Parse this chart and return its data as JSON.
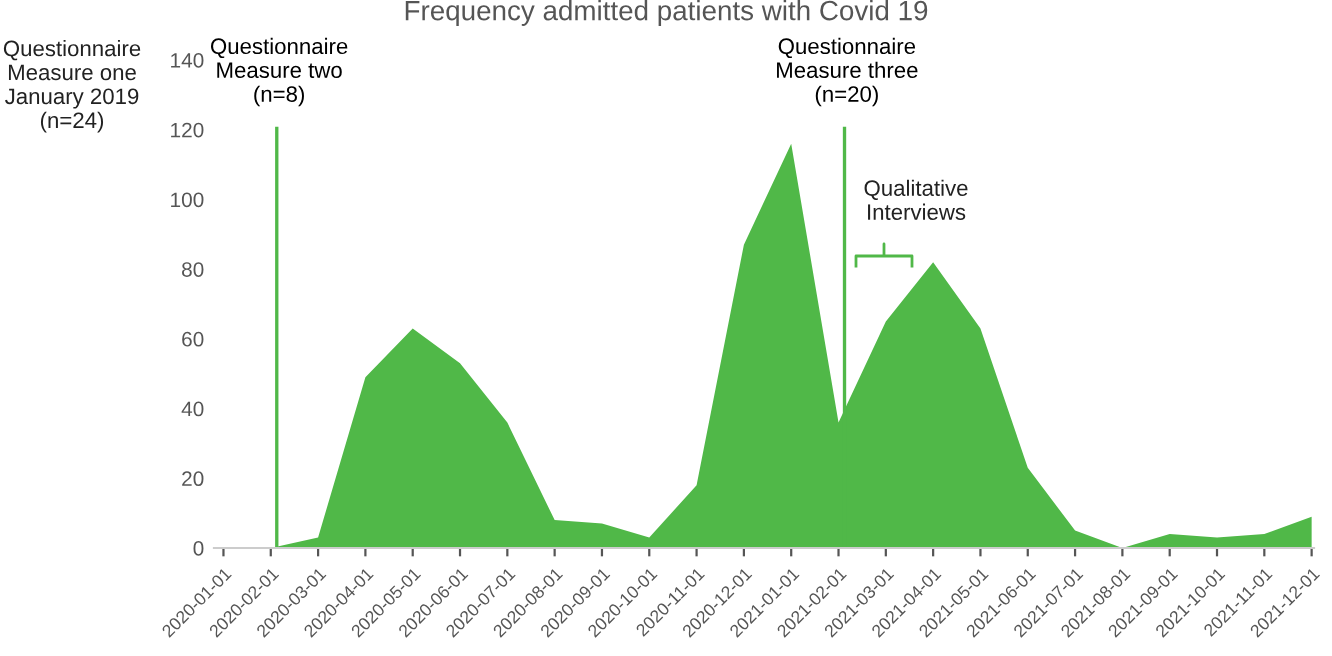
{
  "chart_data": {
    "type": "area",
    "title": "Frequency admitted patients with Covid 19",
    "categories": [
      "2020-01-01",
      "2020-02-01",
      "2020-03-01",
      "2020-04-01",
      "2020-05-01",
      "2020-06-01",
      "2020-07-01",
      "2020-08-01",
      "2020-09-01",
      "2020-10-01",
      "2020-11-01",
      "2020-12-01",
      "2021-01-01",
      "2021-02-01",
      "2021-03-01",
      "2021-04-01",
      "2021-05-01",
      "2021-06-01",
      "2021-07-01",
      "2021-08-01",
      "2021-09-01",
      "2021-10-01",
      "2021-11-01",
      "2021-12-01"
    ],
    "series": [
      {
        "color": "#50b848",
        "values": [
          null,
          0,
          3,
          49,
          63,
          53,
          36,
          8,
          7,
          3,
          18,
          87,
          116,
          36,
          65,
          82,
          63,
          23,
          5,
          0,
          4,
          3,
          4,
          9
        ]
      }
    ],
    "ylim": [
      0,
      140
    ],
    "yticks": [
      0,
      20,
      40,
      60,
      80,
      100,
      120,
      140
    ],
    "grid": false,
    "legend": false,
    "ref_lines": [
      {
        "axis": "x",
        "value": "2020-02-01",
        "label": "Questionnaire\nMeasure two\n(n=8)",
        "color": "#50b848"
      },
      {
        "axis": "x",
        "value": "2021-02-01",
        "label": "Questionnaire\nMeasure three\n(n=20)",
        "color": "#50b848"
      }
    ],
    "annotations": [
      "Questionnaire\nMeasure one\nJanuary 2019\n(n=24)",
      "Qualitative\nInterviews"
    ]
  }
}
